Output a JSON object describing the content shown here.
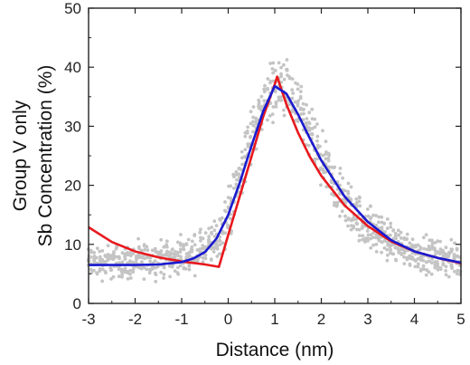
{
  "chart_data": {
    "type": "scatter",
    "xlabel": "Distance (nm)",
    "ylabel_lines": [
      "Group V only",
      "Sb Concentration (%)"
    ],
    "xlim": [
      -3,
      5
    ],
    "ylim": [
      0,
      50
    ],
    "xticks": [
      -3,
      -2,
      -1,
      0,
      1,
      2,
      3,
      4,
      5
    ],
    "yticks": [
      0,
      10,
      20,
      30,
      40,
      50
    ],
    "grid": false,
    "legend": "none",
    "scatter_color": "#c4c4c4",
    "scatter_profile": {
      "x": [
        -3,
        -2.5,
        -2,
        -1.5,
        -1,
        -0.5,
        -0.2,
        0,
        0.3,
        0.6,
        0.9,
        1.1,
        1.3,
        1.6,
        2.0,
        2.5,
        3.0,
        3.5,
        4.0,
        4.5,
        5.0
      ],
      "y_center": [
        7,
        7,
        7,
        7.5,
        8,
        9,
        11,
        15,
        23,
        31,
        36,
        37,
        35.5,
        31,
        24,
        17,
        13,
        10.5,
        8.7,
        7.8,
        7
      ],
      "y_spread": [
        3,
        3,
        3,
        3,
        3,
        3.5,
        4,
        5,
        5,
        5,
        5,
        5,
        5.5,
        5,
        5,
        4.5,
        4,
        3.5,
        3,
        3,
        3
      ]
    },
    "series": [
      {
        "color": "#e8191d",
        "x": [
          -3,
          -2.5,
          -2,
          -1.5,
          -1,
          -0.5,
          -0.2,
          0,
          0.25,
          0.5,
          0.75,
          1.0,
          1.05,
          1.25,
          1.5,
          1.75,
          2.0,
          2.5,
          3.0,
          3.5,
          4.0,
          4.5,
          5.0
        ],
        "y": [
          12.9,
          10.4,
          8.8,
          7.8,
          7.1,
          6.6,
          6.2,
          11.6,
          18.2,
          24.9,
          31.6,
          37.1,
          38.4,
          33.7,
          28.9,
          24.9,
          21.6,
          16.6,
          13.1,
          10.5,
          8.8,
          7.7,
          6.8
        ]
      },
      {
        "color": "#1a1acf",
        "x": [
          -3,
          -2.5,
          -2,
          -1.5,
          -1,
          -0.75,
          -0.5,
          -0.25,
          0,
          0.25,
          0.5,
          0.75,
          1.0,
          1.25,
          1.5,
          1.75,
          2.0,
          2.5,
          3.0,
          3.5,
          4.0,
          4.5,
          5.0
        ],
        "y": [
          6.5,
          6.5,
          6.5,
          6.6,
          7.0,
          7.6,
          8.7,
          11.0,
          15.0,
          20.5,
          26.7,
          32.5,
          36.8,
          35.5,
          32.0,
          28.0,
          24.2,
          18.1,
          13.8,
          10.7,
          8.8,
          7.7,
          6.9
        ]
      }
    ]
  }
}
